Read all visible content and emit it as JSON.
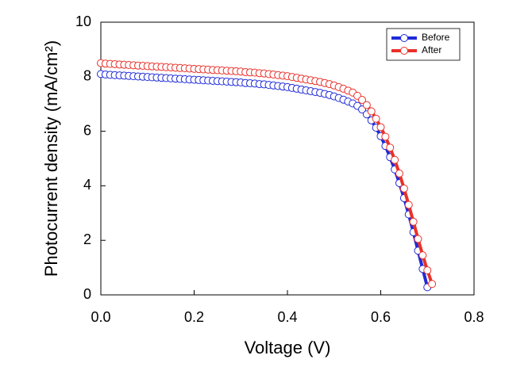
{
  "chart_data": {
    "type": "line",
    "x_label": "Voltage (V)",
    "y_label": "Photocurrent density (mA/cm²)",
    "x": [
      0,
      0.01,
      0.02,
      0.03,
      0.04,
      0.05,
      0.06,
      0.07,
      0.08,
      0.09,
      0.1,
      0.11,
      0.12,
      0.13,
      0.14,
      0.15,
      0.16,
      0.17,
      0.18,
      0.19,
      0.2,
      0.21,
      0.22,
      0.23,
      0.24,
      0.25,
      0.26,
      0.27,
      0.28,
      0.29,
      0.3,
      0.31,
      0.32,
      0.33,
      0.34,
      0.35,
      0.36,
      0.37,
      0.38,
      0.39,
      0.4,
      0.41,
      0.42,
      0.43,
      0.44,
      0.45,
      0.46,
      0.47,
      0.48,
      0.49,
      0.5,
      0.51,
      0.52,
      0.53,
      0.54,
      0.55,
      0.56,
      0.57,
      0.58,
      0.59,
      0.6,
      0.61,
      0.62,
      0.63,
      0.64,
      0.65,
      0.66,
      0.67,
      0.68,
      0.69,
      0.7,
      0.71
    ],
    "series": [
      {
        "name": "Before",
        "color": "#1f2bd8",
        "values": [
          8.1,
          8.08,
          8.07,
          8.06,
          8.05,
          8.04,
          8.03,
          8.02,
          8.01,
          8.0,
          7.99,
          7.98,
          7.97,
          7.96,
          7.95,
          7.94,
          7.93,
          7.92,
          7.91,
          7.9,
          7.89,
          7.88,
          7.87,
          7.86,
          7.85,
          7.84,
          7.83,
          7.82,
          7.81,
          7.8,
          7.79,
          7.77,
          7.76,
          7.75,
          7.73,
          7.72,
          7.7,
          7.68,
          7.66,
          7.64,
          7.62,
          7.59,
          7.56,
          7.53,
          7.5,
          7.47,
          7.44,
          7.41,
          7.37,
          7.33,
          7.28,
          7.22,
          7.16,
          7.09,
          7.02,
          6.93,
          6.8,
          6.62,
          6.4,
          6.13,
          5.82,
          5.46,
          5.05,
          4.6,
          4.1,
          3.55,
          2.95,
          2.3,
          1.62,
          0.95,
          0.28,
          null
        ]
      },
      {
        "name": "After",
        "color": "#e8312a",
        "values": [
          8.5,
          8.48,
          8.47,
          8.46,
          8.45,
          8.44,
          8.43,
          8.42,
          8.41,
          8.4,
          8.39,
          8.38,
          8.37,
          8.36,
          8.35,
          8.34,
          8.33,
          8.32,
          8.31,
          8.3,
          8.29,
          8.28,
          8.27,
          8.26,
          8.25,
          8.24,
          8.23,
          8.22,
          8.21,
          8.2,
          8.19,
          8.17,
          8.16,
          8.15,
          8.13,
          8.12,
          8.1,
          8.08,
          8.06,
          8.04,
          8.02,
          7.99,
          7.96,
          7.93,
          7.9,
          7.87,
          7.84,
          7.81,
          7.77,
          7.73,
          7.68,
          7.62,
          7.56,
          7.49,
          7.42,
          7.3,
          7.15,
          6.96,
          6.73,
          6.46,
          6.15,
          5.8,
          5.4,
          4.95,
          4.45,
          3.9,
          3.3,
          2.68,
          2.05,
          1.45,
          0.9,
          0.4
        ]
      }
    ],
    "xlim": [
      0,
      0.8
    ],
    "xticks": [
      {
        "value": 0,
        "label": "0.0"
      },
      {
        "value": 0.2,
        "label": "0.2"
      },
      {
        "value": 0.4,
        "label": "0.4"
      },
      {
        "value": 0.6,
        "label": "0.6"
      },
      {
        "value": 0.8,
        "label": "0.8"
      }
    ],
    "ylim": [
      0,
      10
    ],
    "yticks": [
      0,
      2,
      4,
      6,
      8,
      10
    ],
    "legend": "top-right"
  }
}
